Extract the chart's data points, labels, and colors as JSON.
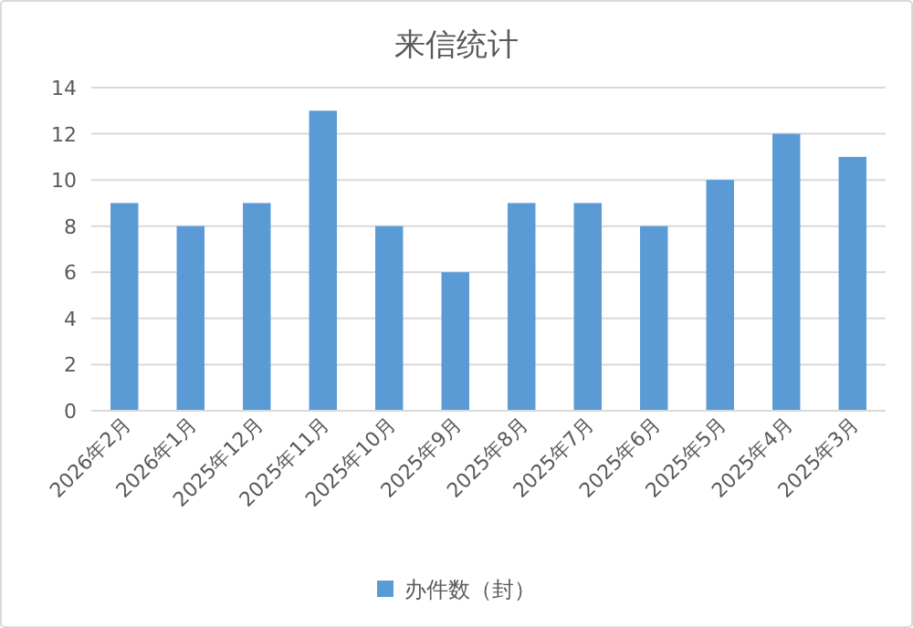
{
  "chart_data": {
    "type": "bar",
    "title": "来信统计",
    "categories": [
      "2026年2月",
      "2026年1月",
      "2025年12月",
      "2025年11月",
      "2025年10月",
      "2025年9月",
      "2025年8月",
      "2025年7月",
      "2025年6月",
      "2025年5月",
      "2025年4月",
      "2025年3月"
    ],
    "series": [
      {
        "name": "办件数（封）",
        "color": "#5b9bd5",
        "values": [
          9,
          8,
          9,
          13,
          8,
          6,
          9,
          9,
          8,
          10,
          12,
          11
        ]
      }
    ],
    "ylim": [
      0,
      14
    ],
    "yticks": [
      0,
      2,
      4,
      6,
      8,
      10,
      12,
      14
    ],
    "grid": "y",
    "legend": "bottom"
  }
}
